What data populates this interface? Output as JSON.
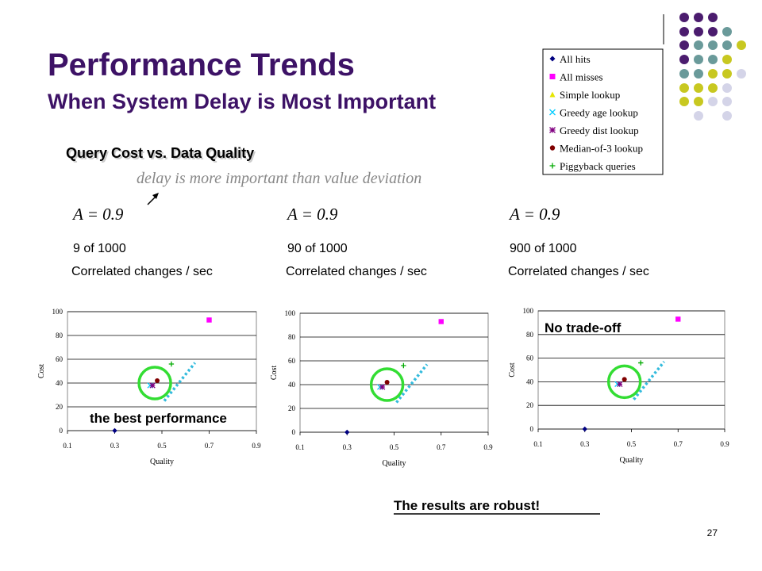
{
  "slide": {
    "title": "Performance Trends",
    "subtitle": "When System Delay is Most Important",
    "heading": "Query Cost vs. Data Quality",
    "note": "delay is more important than value deviation",
    "panels": [
      {
        "param": "A = 0.9",
        "rate": "9 of 1000",
        "unit": "Correlated changes / sec"
      },
      {
        "param": "A = 0.9",
        "rate": "90 of 1000",
        "unit": "Correlated changes / sec"
      },
      {
        "param": "A = 0.9",
        "rate": "900 of 1000",
        "unit": "Correlated changes / sec"
      }
    ],
    "callout_best": "the best performance",
    "callout_tradeoff": "No trade-off",
    "conclusion": "The results are robust!",
    "page_number": "27"
  },
  "chart_data": [
    {
      "type": "scatter",
      "x_label": "Quality",
      "y_label": "Cost",
      "xlim": [
        0.1,
        0.9
      ],
      "xticks": [
        0.1,
        0.3,
        0.5,
        0.7,
        0.9
      ],
      "ylim": [
        0,
        100
      ],
      "yticks": [
        0,
        20,
        40,
        60,
        80,
        100
      ],
      "grid": true,
      "series": [
        {
          "name": "All hits",
          "color": "#000080",
          "marker": "diamond",
          "x": [
            0.3
          ],
          "values": [
            0
          ]
        },
        {
          "name": "All misses",
          "color": "#ff00ff",
          "marker": "square",
          "x": [
            0.7
          ],
          "values": [
            93
          ]
        },
        {
          "name": "Simple lookup",
          "color": "#e6e600",
          "marker": "triangle",
          "x": [],
          "values": []
        },
        {
          "name": "Greedy age lookup",
          "color": "#00ccff",
          "marker": "cross",
          "x": [
            0.45
          ],
          "values": [
            38
          ]
        },
        {
          "name": "Greedy dist lookup",
          "color": "#800080",
          "marker": "star",
          "x": [
            0.46
          ],
          "values": [
            38
          ]
        },
        {
          "name": "Median-of-3 lookup",
          "color": "#800000",
          "marker": "circle",
          "x": [
            0.48
          ],
          "values": [
            42
          ]
        },
        {
          "name": "Piggyback queries",
          "color": "#00aa00",
          "marker": "plus",
          "x": [
            0.54
          ],
          "values": [
            56
          ]
        }
      ]
    },
    {
      "type": "scatter",
      "x_label": "Quality",
      "y_label": "Cost",
      "xlim": [
        0.1,
        0.9
      ],
      "xticks": [
        0.1,
        0.3,
        0.5,
        0.7,
        0.9
      ],
      "ylim": [
        0,
        100
      ],
      "yticks": [
        0,
        20,
        40,
        60,
        80,
        100
      ],
      "grid": true,
      "series": [
        {
          "name": "All hits",
          "color": "#000080",
          "marker": "diamond",
          "x": [
            0.3
          ],
          "values": [
            0
          ]
        },
        {
          "name": "All misses",
          "color": "#ff00ff",
          "marker": "square",
          "x": [
            0.7
          ],
          "values": [
            93
          ]
        },
        {
          "name": "Simple lookup",
          "color": "#e6e600",
          "marker": "triangle",
          "x": [],
          "values": []
        },
        {
          "name": "Greedy age lookup",
          "color": "#00ccff",
          "marker": "cross",
          "x": [
            0.44
          ],
          "values": [
            38
          ]
        },
        {
          "name": "Greedy dist lookup",
          "color": "#800080",
          "marker": "star",
          "x": [
            0.45
          ],
          "values": [
            38
          ]
        },
        {
          "name": "Median-of-3 lookup",
          "color": "#800000",
          "marker": "circle",
          "x": [
            0.47
          ],
          "values": [
            42
          ]
        },
        {
          "name": "Piggyback queries",
          "color": "#00aa00",
          "marker": "plus",
          "x": [
            0.54
          ],
          "values": [
            56
          ]
        }
      ]
    },
    {
      "type": "scatter",
      "x_label": "Quality",
      "y_label": "Cost",
      "xlim": [
        0.1,
        0.9
      ],
      "xticks": [
        0.1,
        0.3,
        0.5,
        0.7,
        0.9
      ],
      "ylim": [
        0,
        100
      ],
      "yticks": [
        0,
        20,
        40,
        60,
        80,
        100
      ],
      "grid": true,
      "series": [
        {
          "name": "All hits",
          "color": "#000080",
          "marker": "diamond",
          "x": [
            0.3
          ],
          "values": [
            0
          ]
        },
        {
          "name": "All misses",
          "color": "#ff00ff",
          "marker": "square",
          "x": [
            0.7
          ],
          "values": [
            93
          ]
        },
        {
          "name": "Simple lookup",
          "color": "#e6e600",
          "marker": "triangle",
          "x": [],
          "values": []
        },
        {
          "name": "Greedy age lookup",
          "color": "#00ccff",
          "marker": "cross",
          "x": [
            0.44
          ],
          "values": [
            38
          ]
        },
        {
          "name": "Greedy dist lookup",
          "color": "#800080",
          "marker": "star",
          "x": [
            0.45
          ],
          "values": [
            38
          ]
        },
        {
          "name": "Median-of-3 lookup",
          "color": "#800000",
          "marker": "circle",
          "x": [
            0.47
          ],
          "values": [
            42
          ]
        },
        {
          "name": "Piggyback queries",
          "color": "#00aa00",
          "marker": "plus",
          "x": [
            0.54
          ],
          "values": [
            56
          ]
        }
      ]
    }
  ]
}
